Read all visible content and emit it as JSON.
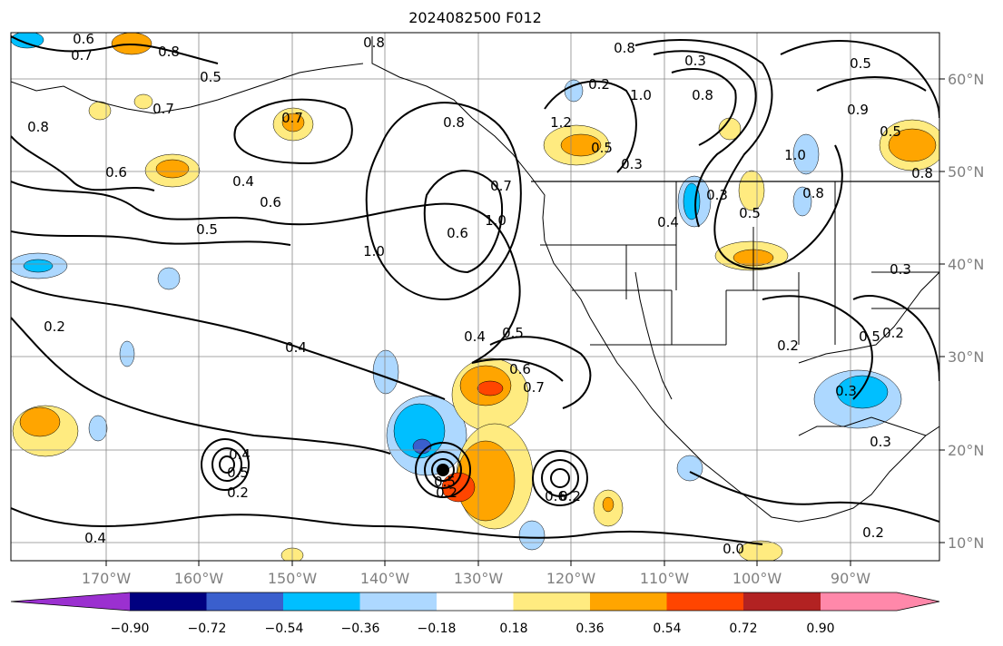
{
  "title": "2024082500 F012",
  "map": {
    "lon_ticks": [
      "170°W",
      "160°W",
      "150°W",
      "140°W",
      "130°W",
      "120°W",
      "110°W",
      "100°W",
      "90°W"
    ],
    "lat_ticks": [
      "60°N",
      "50°N",
      "40°N",
      "30°N",
      "20°N",
      "10°N"
    ],
    "contour_labels": [
      "0.6",
      "0.7",
      "0.8",
      "0.5",
      "0.7",
      "0.8",
      "0.6",
      "0.4",
      "0.6",
      "0.5",
      "0.7",
      "0.8",
      "0.6",
      "1.0",
      "0.5",
      "1.0",
      "0.7",
      "0.8",
      "0.8",
      "0.2",
      "0.3",
      "1.0",
      "0.8",
      "1.2",
      "0.5",
      "0.5",
      "0.3",
      "0.4",
      "0.3",
      "1.0",
      "0.8",
      "0.9",
      "0.5",
      "0.8",
      "0.3",
      "0.2",
      "0.4",
      "0.4",
      "0.5",
      "0.6",
      "0.7",
      "0.5",
      "0.2",
      "0.3",
      "0.3",
      "0.4",
      "0.5",
      "0.2",
      "0.5",
      "0.2",
      "0.6",
      "0.4",
      "0.2",
      "0.2",
      "0.0",
      "0.2"
    ],
    "contour_style": "black solid contour lines",
    "coastlines": true,
    "grid": true
  },
  "colorbar": {
    "ticks": [
      "−0.90",
      "−0.72",
      "−0.54",
      "−0.36",
      "−0.18",
      "0.18",
      "0.36",
      "0.54",
      "0.72",
      "0.90"
    ],
    "colors": [
      "#9b30d0",
      "#000080",
      "#3a5fcd",
      "#00bfff",
      "#add8ff",
      "#ffffff",
      "#ffeb80",
      "#ffa500",
      "#ff4500",
      "#b22222",
      "#ff88aa"
    ],
    "extend": "both"
  }
}
